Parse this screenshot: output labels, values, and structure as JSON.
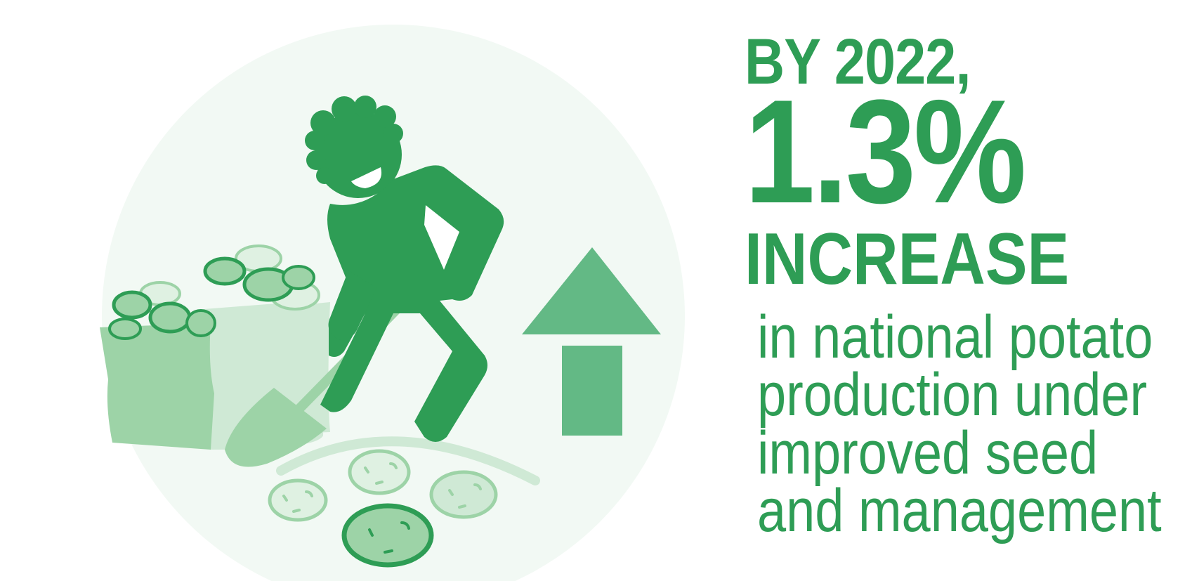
{
  "headline": {
    "year_line": "BY 2022,",
    "percentage": "1.3%",
    "change_word": "INCREASE"
  },
  "description_lines": [
    "in national potato",
    "production under",
    "improved seed",
    "and management"
  ],
  "colors": {
    "primary_green": "#2e9d55",
    "light_green": "#9dd3a7",
    "pale_green": "#cfe9d5",
    "background_circle": "#f2f9f4",
    "arrow_green": "#63b985"
  },
  "icons": [
    "farmer-digging-icon",
    "shovel-icon",
    "potato-sack-icon",
    "potato-icon",
    "up-arrow-icon"
  ]
}
